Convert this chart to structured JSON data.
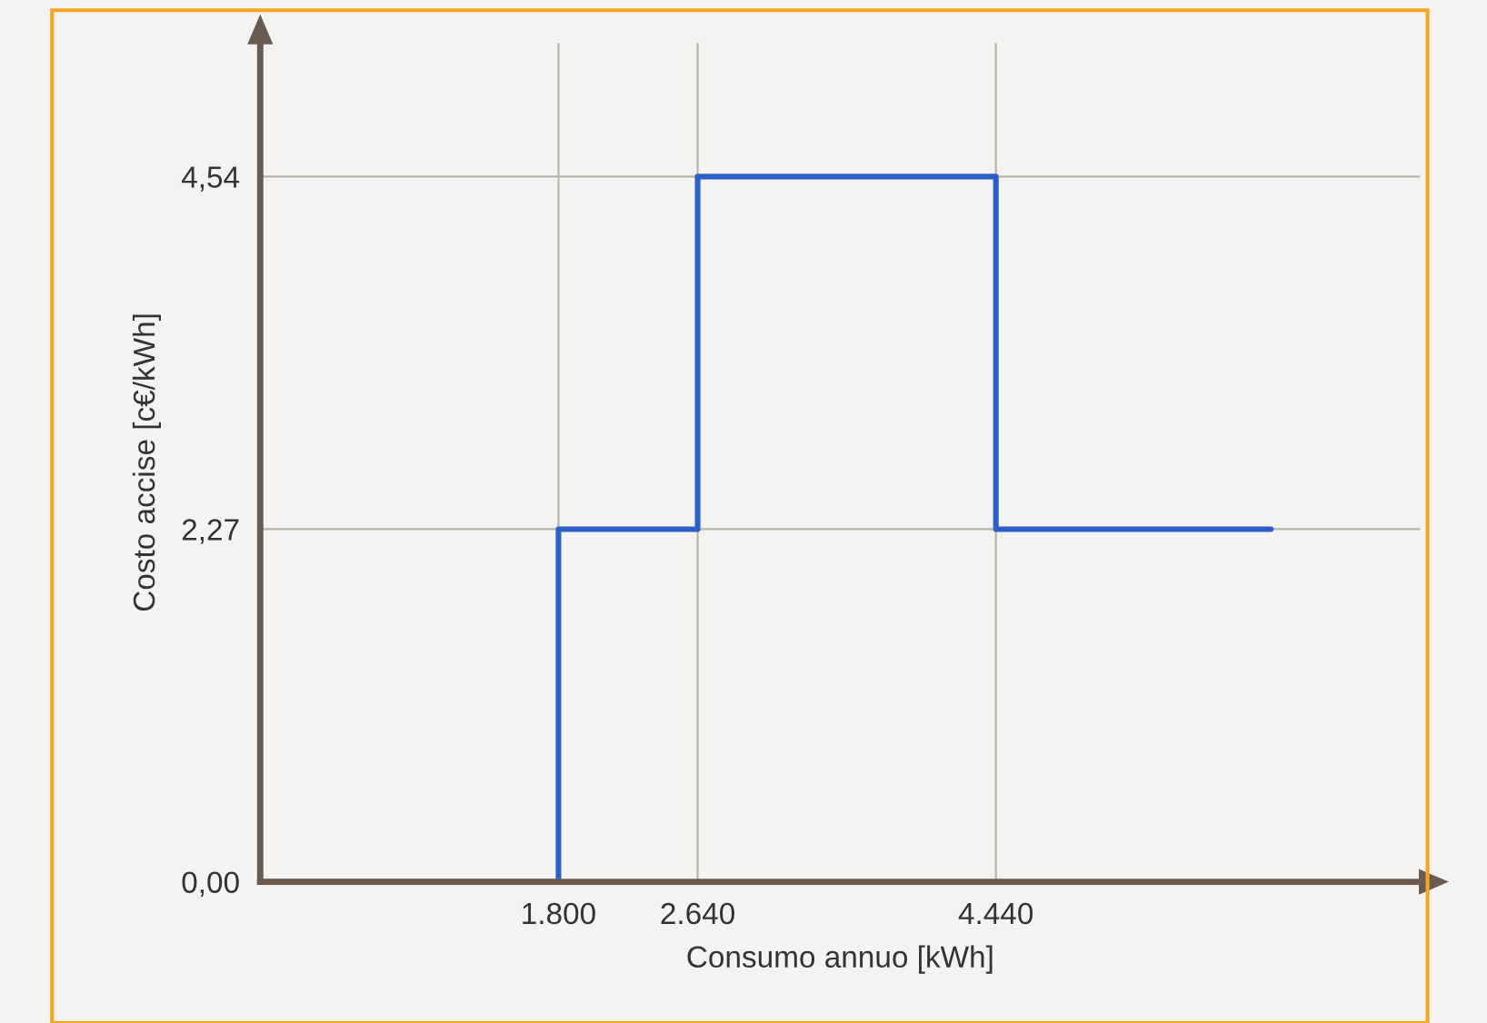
{
  "chart_data": {
    "type": "step",
    "xlabel": "Consumo annuo [kWh]",
    "ylabel": "Costo accise [c€/kWh]",
    "x": [
      0,
      1800,
      2640,
      4440,
      6100
    ],
    "series": [
      {
        "color": "#2e5fc8",
        "values": [
          0,
          2.27,
          4.54,
          2.27,
          2.27
        ]
      }
    ],
    "xlim": [
      0,
      7000
    ],
    "ylim": [
      0,
      5.4
    ],
    "xticks": [
      {
        "value": 1800,
        "label": "1.800"
      },
      {
        "value": 2640,
        "label": "2.640"
      },
      {
        "value": 4440,
        "label": "4.440"
      }
    ],
    "yticks": [
      {
        "value": 0,
        "label": "0,00"
      },
      {
        "value": 2.27,
        "label": "2,27"
      },
      {
        "value": 4.54,
        "label": "4,54"
      }
    ],
    "grid": true,
    "line_style": "solid",
    "marker": "none"
  }
}
